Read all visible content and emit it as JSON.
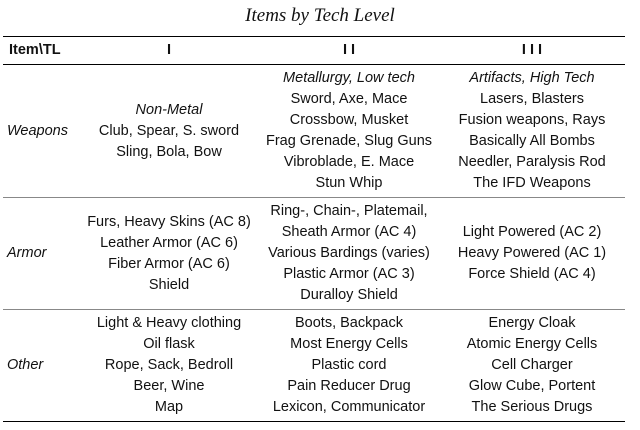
{
  "title": "Items by Tech Level",
  "columns": [
    "Item\\TL",
    "I",
    "I I",
    "I I I"
  ],
  "rows": [
    {
      "label": "Weapons",
      "cells": [
        {
          "subheading": "Non-Metal",
          "items": [
            "Club, Spear, S. sword",
            "Sling, Bola, Bow"
          ]
        },
        {
          "subheading": "Metallurgy, Low tech",
          "items": [
            "Sword, Axe, Mace",
            "Crossbow, Musket",
            "Frag Grenade, Slug Guns",
            "Vibroblade, E. Mace",
            "Stun Whip"
          ]
        },
        {
          "subheading": "Artifacts, High Tech",
          "items": [
            "Lasers, Blasters",
            "Fusion weapons, Rays",
            "Basically All Bombs",
            "Needler, Paralysis Rod",
            "The IFD Weapons"
          ]
        }
      ]
    },
    {
      "label": "Armor",
      "cells": [
        {
          "items": [
            "Furs, Heavy Skins (AC 8)",
            "Leather Armor (AC 6)",
            "Fiber Armor (AC 6)",
            "Shield"
          ]
        },
        {
          "items": [
            "Ring-, Chain-, Platemail,",
            "Sheath Armor (AC 4)",
            "Various Bardings (varies)",
            "Plastic Armor (AC 3)",
            "Duralloy Shield"
          ]
        },
        {
          "items": [
            "Light Powered (AC 2)",
            "Heavy Powered (AC 1)",
            "Force Shield (AC 4)"
          ]
        }
      ]
    },
    {
      "label": "Other",
      "cells": [
        {
          "items": [
            "Light & Heavy clothing",
            "Oil flask",
            "Rope, Sack, Bedroll",
            "Beer, Wine",
            "Map"
          ]
        },
        {
          "items": [
            "Boots, Backpack",
            "Most Energy Cells",
            "Plastic cord",
            "Pain Reducer Drug",
            "Lexicon, Communicator"
          ]
        },
        {
          "items": [
            "Energy Cloak",
            "Atomic Energy Cells",
            "Cell Charger",
            "Glow Cube, Portent",
            "The Serious Drugs"
          ]
        }
      ]
    }
  ]
}
